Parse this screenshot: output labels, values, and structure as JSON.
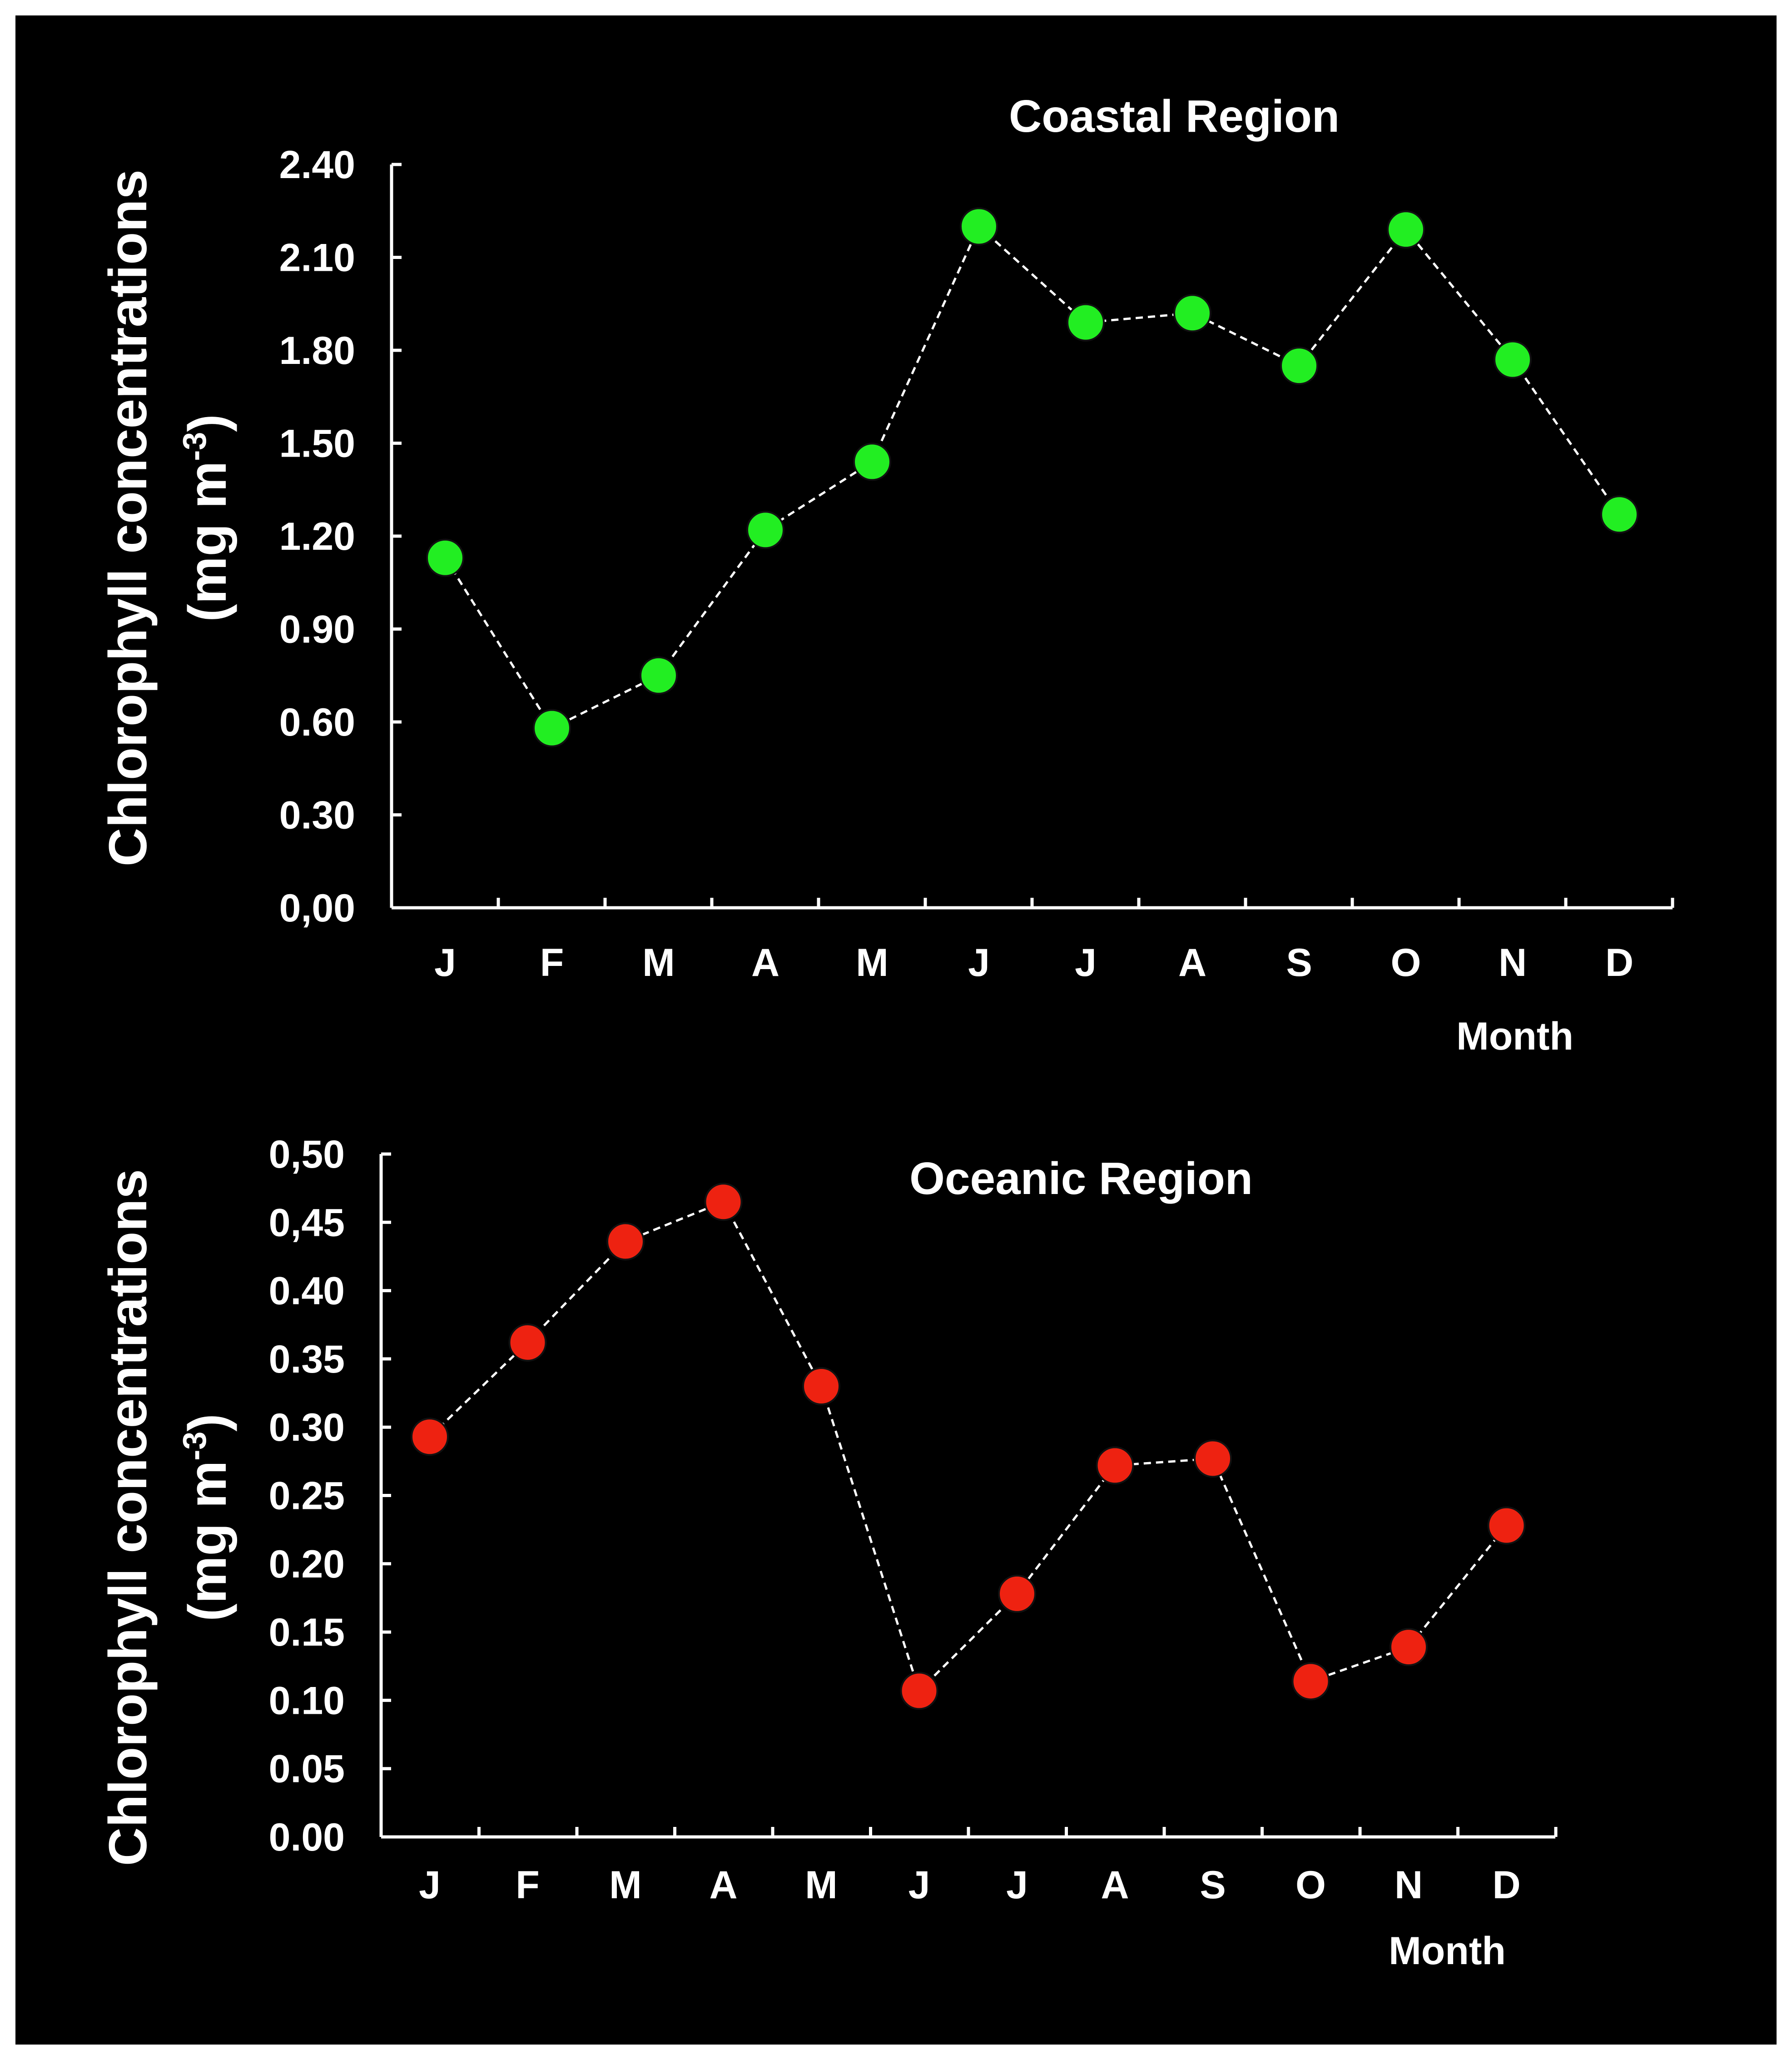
{
  "colors": {
    "background": "#000000",
    "text": "#ffffff",
    "coastal_marker": "#22ee22",
    "oceanic_marker": "#ee2211"
  },
  "chart_data": [
    {
      "type": "line",
      "title": "Coastal Region",
      "xlabel": "Month",
      "ylabel_line1": "Chlorophyll concentrations",
      "ylabel_line2_prefix": "(mg m",
      "ylabel_line2_sup": "-3",
      "ylabel_line2_suffix": ")",
      "categories": [
        "J",
        "F",
        "M",
        "A",
        "M",
        "J",
        "J",
        "A",
        "S",
        "O",
        "N",
        "D"
      ],
      "values": [
        1.13,
        0.58,
        0.75,
        1.22,
        1.44,
        2.2,
        1.89,
        1.92,
        1.75,
        2.19,
        1.77,
        1.27
      ],
      "ylim": [
        0,
        2.4
      ],
      "ytick_labels": [
        "0,00",
        "0.30",
        "0.60",
        "0.90",
        "1.20",
        "1.50",
        "1.80",
        "2.10",
        "2.40"
      ]
    },
    {
      "type": "line",
      "title": "Oceanic Region",
      "xlabel": "Month",
      "ylabel_line1": "Chlorophyll concentrations",
      "ylabel_line2_prefix": "(mg m",
      "ylabel_line2_sup": "-3",
      "ylabel_line2_suffix": ")",
      "categories": [
        "J",
        "F",
        "M",
        "A",
        "M",
        "J",
        "J",
        "A",
        "S",
        "O",
        "N",
        "D"
      ],
      "values": [
        0.293,
        0.362,
        0.436,
        0.465,
        0.33,
        0.107,
        0.178,
        0.272,
        0.277,
        0.114,
        0.139,
        0.228
      ],
      "ylim": [
        0,
        0.5
      ],
      "ytick_labels": [
        "0.00",
        "0.05",
        "0.10",
        "0.15",
        "0.20",
        "0.25",
        "0.30",
        "0.35",
        "0.40",
        "0,45",
        "0,50"
      ]
    }
  ]
}
